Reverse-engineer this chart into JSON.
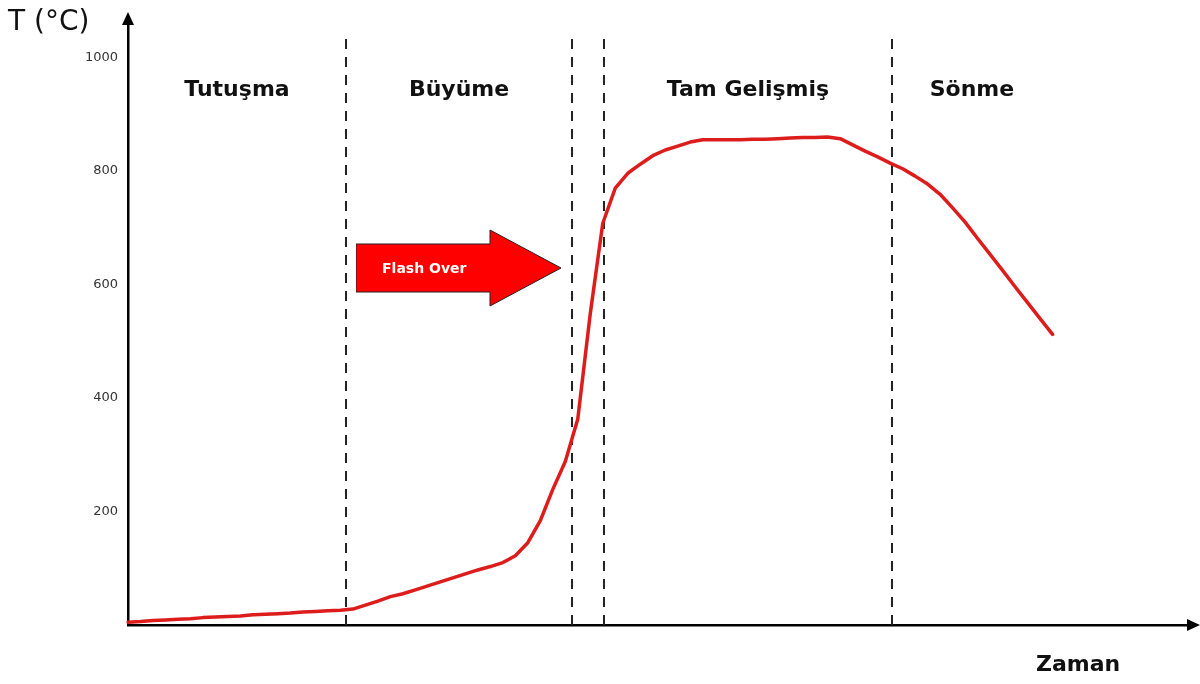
{
  "chart_data": {
    "type": "line",
    "ylabel": "T (°C)",
    "xlabel": "Zaman",
    "categories": [
      null,
      null,
      null,
      null,
      null,
      null,
      null,
      null,
      null,
      null,
      null,
      null,
      null,
      null,
      null,
      null,
      null,
      null,
      null,
      null,
      null,
      null,
      null,
      null,
      null,
      null,
      null,
      null,
      null,
      null,
      null,
      null,
      null,
      null,
      null,
      null,
      null,
      null,
      null,
      null,
      null,
      null,
      null,
      null,
      null,
      null,
      null,
      null,
      null,
      null,
      null,
      null,
      null,
      null,
      null,
      null,
      null,
      null,
      null,
      null,
      null,
      null,
      null,
      null,
      null,
      null,
      null,
      null,
      null,
      null,
      null,
      null,
      null,
      null,
      null,
      null,
      null,
      null,
      null,
      null,
      null,
      null,
      null,
      null,
      null,
      null
    ],
    "series": [
      {
        "color": "#dd1c1c",
        "values": [
          5,
          6,
          8,
          9,
          10,
          11,
          13,
          14,
          15,
          16,
          18,
          19,
          20,
          21,
          23,
          24,
          25,
          26,
          28,
          35,
          42,
          50,
          55,
          62,
          69,
          76,
          83,
          90,
          97,
          103,
          110,
          122,
          145,
          184,
          239,
          288,
          363,
          549,
          708,
          770,
          796,
          812,
          827,
          837,
          844,
          851,
          855,
          855,
          855,
          855,
          856,
          856,
          857,
          858,
          859,
          859,
          860,
          857,
          846,
          835,
          825,
          814,
          804,
          791,
          777,
          759,
          735,
          710,
          681,
          653,
          625,
          596,
          568,
          540,
          512,
          null,
          null,
          null,
          null,
          null,
          null,
          null,
          null,
          null,
          null,
          null
        ]
      }
    ],
    "ylim": [
      0,
      1070
    ],
    "yticks": [
      200,
      400,
      600,
      800,
      1000
    ],
    "grid": false,
    "marker": "none",
    "line_style": "solid",
    "annotations": [
      "Tutuşma",
      "Büyüme",
      "Tam Gelişmiş",
      "Sönme",
      "Flash Over"
    ],
    "tick_labels": "y"
  }
}
